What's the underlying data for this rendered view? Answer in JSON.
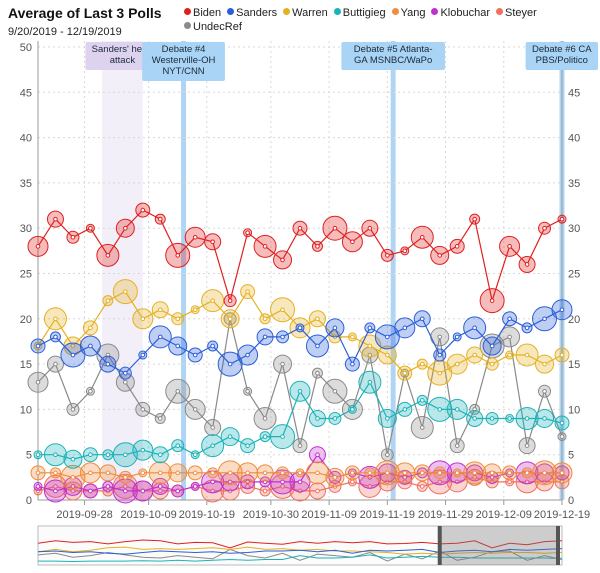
{
  "title": "Average of Last 3 Polls",
  "subtitle": "9/20/2019 - 12/19/2019",
  "colors": {
    "Biden": "#e02020",
    "Sanders": "#2b5fd9",
    "Warren": "#e6b020",
    "Buttigieg": "#1ab3b8",
    "Yang": "#f08c3c",
    "Klobuchar": "#c030d0",
    "Steyer": "#f07060",
    "UndecRef": "#8a8a8a"
  },
  "chart_data": {
    "type": "line",
    "title": "Average of Last 3 Polls",
    "xlabel": "",
    "ylabel": "",
    "x_range": [
      "2019-09-20",
      "2019-12-19"
    ],
    "ylim": [
      0,
      50
    ],
    "y_ticks": [
      0,
      5,
      10,
      15,
      20,
      25,
      30,
      35,
      40,
      45,
      50
    ],
    "x_ticks": [
      "2019-09-28",
      "2019-10-09",
      "2019-10-19",
      "2019-10-30",
      "2019-11-09",
      "2019-11-19",
      "2019-11-29",
      "2019-12-09",
      "2019-12-19"
    ],
    "grid": true,
    "legend": "top",
    "events": [
      {
        "label": [
          "Sanders' heart",
          "attack"
        ],
        "start": "2019-10-01",
        "end": "2019-10-08",
        "kind": "period"
      },
      {
        "label": [
          "Debate #4",
          "Westerville-OH",
          "NYT/CNN"
        ],
        "date": "2019-10-15",
        "kind": "debate"
      },
      {
        "label": [
          "Debate #5 Atlanta-",
          "GA MSNBC/WaPo"
        ],
        "date": "2019-11-20",
        "kind": "debate"
      },
      {
        "label": [
          "Debate #6 CA",
          "PBS/Politico"
        ],
        "date": "2019-12-19",
        "kind": "debate"
      }
    ],
    "series": [
      {
        "name": "Biden",
        "x": [
          "2019-09-20",
          "2019-09-23",
          "2019-09-26",
          "2019-09-29",
          "2019-10-02",
          "2019-10-05",
          "2019-10-08",
          "2019-10-11",
          "2019-10-14",
          "2019-10-17",
          "2019-10-20",
          "2019-10-23",
          "2019-10-26",
          "2019-10-29",
          "2019-11-01",
          "2019-11-04",
          "2019-11-07",
          "2019-11-10",
          "2019-11-13",
          "2019-11-16",
          "2019-11-19",
          "2019-11-22",
          "2019-11-25",
          "2019-11-28",
          "2019-12-01",
          "2019-12-04",
          "2019-12-07",
          "2019-12-10",
          "2019-12-13",
          "2019-12-16",
          "2019-12-19"
        ],
        "values": [
          28,
          31,
          29,
          30,
          27,
          30,
          32,
          31,
          27,
          29,
          28.5,
          22,
          29.5,
          28,
          26.5,
          30,
          28,
          30,
          28.5,
          30,
          27,
          27.5,
          29,
          27,
          28,
          31,
          22,
          28,
          26,
          30,
          31
        ]
      },
      {
        "name": "Sanders",
        "x": [
          "2019-09-20",
          "2019-09-23",
          "2019-09-26",
          "2019-09-29",
          "2019-10-02",
          "2019-10-05",
          "2019-10-08",
          "2019-10-11",
          "2019-10-14",
          "2019-10-17",
          "2019-10-20",
          "2019-10-23",
          "2019-10-26",
          "2019-10-29",
          "2019-11-01",
          "2019-11-04",
          "2019-11-07",
          "2019-11-10",
          "2019-11-13",
          "2019-11-16",
          "2019-11-19",
          "2019-11-22",
          "2019-11-25",
          "2019-11-28",
          "2019-12-01",
          "2019-12-04",
          "2019-12-07",
          "2019-12-10",
          "2019-12-13",
          "2019-12-16",
          "2019-12-19"
        ],
        "values": [
          17,
          18,
          16,
          17,
          15,
          14,
          16,
          18,
          17,
          16,
          17,
          15,
          16,
          18,
          18,
          19,
          17,
          19,
          15,
          19,
          18,
          19,
          20,
          16,
          18,
          19,
          17,
          20,
          19,
          20,
          21
        ]
      },
      {
        "name": "Warren",
        "x": [
          "2019-09-20",
          "2019-09-23",
          "2019-09-26",
          "2019-09-29",
          "2019-10-02",
          "2019-10-05",
          "2019-10-08",
          "2019-10-11",
          "2019-10-14",
          "2019-10-17",
          "2019-10-20",
          "2019-10-23",
          "2019-10-26",
          "2019-10-29",
          "2019-11-01",
          "2019-11-04",
          "2019-11-07",
          "2019-11-10",
          "2019-11-13",
          "2019-11-16",
          "2019-11-19",
          "2019-11-22",
          "2019-11-25",
          "2019-11-28",
          "2019-12-01",
          "2019-12-04",
          "2019-12-07",
          "2019-12-10",
          "2019-12-13",
          "2019-12-16",
          "2019-12-19"
        ],
        "values": [
          17,
          20,
          17,
          19,
          22,
          23,
          20,
          21,
          20,
          21,
          22,
          20,
          23,
          20,
          21,
          19,
          20,
          18,
          18,
          17,
          16,
          14,
          15,
          14,
          15,
          16,
          15,
          16,
          16,
          15,
          16
        ]
      },
      {
        "name": "Buttigieg",
        "x": [
          "2019-09-20",
          "2019-09-23",
          "2019-09-26",
          "2019-09-29",
          "2019-10-02",
          "2019-10-05",
          "2019-10-08",
          "2019-10-11",
          "2019-10-14",
          "2019-10-17",
          "2019-10-20",
          "2019-10-23",
          "2019-10-26",
          "2019-10-29",
          "2019-11-01",
          "2019-11-04",
          "2019-11-07",
          "2019-11-10",
          "2019-11-13",
          "2019-11-16",
          "2019-11-19",
          "2019-11-22",
          "2019-11-25",
          "2019-11-28",
          "2019-12-01",
          "2019-12-04",
          "2019-12-07",
          "2019-12-10",
          "2019-12-13",
          "2019-12-16",
          "2019-12-19"
        ],
        "values": [
          5,
          5,
          4.5,
          5,
          5,
          5,
          5.5,
          5,
          6,
          5,
          6,
          7,
          6,
          7,
          7,
          12,
          9,
          9,
          10,
          13,
          9,
          10,
          11,
          10,
          10,
          9,
          9,
          9,
          9,
          9,
          8.5
        ]
      },
      {
        "name": "Yang",
        "x": [
          "2019-09-20",
          "2019-09-23",
          "2019-09-26",
          "2019-09-29",
          "2019-10-02",
          "2019-10-05",
          "2019-10-08",
          "2019-10-11",
          "2019-10-14",
          "2019-10-17",
          "2019-10-20",
          "2019-10-23",
          "2019-10-26",
          "2019-10-29",
          "2019-11-01",
          "2019-11-04",
          "2019-11-07",
          "2019-11-10",
          "2019-11-13",
          "2019-11-16",
          "2019-11-19",
          "2019-11-22",
          "2019-11-25",
          "2019-11-28",
          "2019-12-01",
          "2019-12-04",
          "2019-12-07",
          "2019-12-10",
          "2019-12-13",
          "2019-12-16",
          "2019-12-19"
        ],
        "values": [
          3,
          3,
          2.5,
          3,
          3,
          2.5,
          3,
          3,
          3,
          3,
          3,
          3,
          3,
          3,
          3,
          3,
          3,
          2.5,
          3,
          3,
          3,
          3,
          3,
          3,
          3,
          3,
          3,
          3,
          3,
          3,
          3
        ]
      },
      {
        "name": "Klobuchar",
        "x": [
          "2019-09-20",
          "2019-09-23",
          "2019-09-26",
          "2019-09-29",
          "2019-10-02",
          "2019-10-05",
          "2019-10-08",
          "2019-10-11",
          "2019-10-14",
          "2019-10-17",
          "2019-10-20",
          "2019-10-23",
          "2019-10-26",
          "2019-10-29",
          "2019-11-01",
          "2019-11-04",
          "2019-11-07",
          "2019-11-10",
          "2019-11-13",
          "2019-11-16",
          "2019-11-19",
          "2019-11-22",
          "2019-11-25",
          "2019-11-28",
          "2019-12-01",
          "2019-12-04",
          "2019-12-07",
          "2019-12-10",
          "2019-12-13",
          "2019-12-16",
          "2019-12-19"
        ],
        "values": [
          1.5,
          1,
          1.5,
          1,
          1.5,
          1,
          1,
          1.5,
          1,
          1.5,
          2,
          2,
          2,
          2,
          2,
          2,
          5,
          2.5,
          3,
          2.5,
          3,
          2.5,
          3,
          3,
          3,
          3,
          2.5,
          3,
          3,
          3,
          3
        ]
      },
      {
        "name": "Steyer",
        "x": [
          "2019-09-20",
          "2019-09-23",
          "2019-09-26",
          "2019-09-29",
          "2019-10-02",
          "2019-10-05",
          "2019-10-08",
          "2019-10-11",
          "2019-10-14",
          "2019-10-17",
          "2019-10-20",
          "2019-10-23",
          "2019-10-26",
          "2019-10-29",
          "2019-11-01",
          "2019-11-04",
          "2019-11-07",
          "2019-11-10",
          "2019-11-13",
          "2019-11-16",
          "2019-11-19",
          "2019-11-22",
          "2019-11-25",
          "2019-11-28",
          "2019-12-01",
          "2019-12-04",
          "2019-12-07",
          "2019-12-10",
          "2019-12-13",
          "2019-12-16",
          "2019-12-19"
        ],
        "values": [
          1,
          1.5,
          1,
          1,
          1,
          1.5,
          1,
          1,
          1,
          1.5,
          1,
          1,
          1.5,
          1,
          1.5,
          1,
          1,
          1.5,
          2,
          1.5,
          2,
          2,
          1.5,
          2,
          2,
          2.5,
          2,
          2,
          2,
          2,
          2
        ]
      },
      {
        "name": "UndecRef",
        "x": [
          "2019-09-20",
          "2019-09-23",
          "2019-09-26",
          "2019-09-29",
          "2019-10-02",
          "2019-10-05",
          "2019-10-08",
          "2019-10-11",
          "2019-10-14",
          "2019-10-17",
          "2019-10-20",
          "2019-10-23",
          "2019-10-26",
          "2019-10-29",
          "2019-11-01",
          "2019-11-04",
          "2019-11-07",
          "2019-11-10",
          "2019-11-13",
          "2019-11-16",
          "2019-11-19",
          "2019-11-22",
          "2019-11-25",
          "2019-11-28",
          "2019-12-01",
          "2019-12-04",
          "2019-12-07",
          "2019-12-10",
          "2019-12-13",
          "2019-12-16",
          "2019-12-19"
        ],
        "values": [
          13,
          15,
          10,
          12,
          16,
          13,
          10,
          9,
          12,
          10,
          8,
          20,
          12,
          9,
          15,
          6,
          14,
          12,
          10,
          16,
          5,
          14,
          8,
          18,
          6,
          10,
          17,
          18,
          6,
          12,
          7
        ]
      }
    ]
  }
}
